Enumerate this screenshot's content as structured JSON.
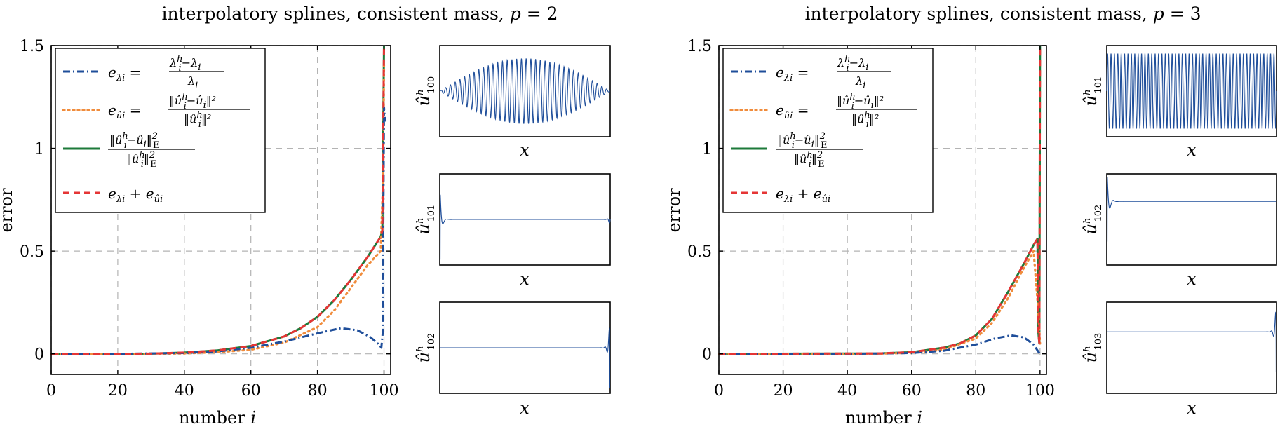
{
  "colors": {
    "blue": "#1f4e9a",
    "orange": "#f08c3c",
    "green": "#1d7a3a",
    "red": "#e53535",
    "grid": "#b3b3b3"
  },
  "chart_data": [
    {
      "type": "line",
      "title": "interpolatory splines, consistent mass, p = 2",
      "title_prefix": "interpolatory splines, consistent mass, ",
      "title_var": "p",
      "title_eq": " = 2",
      "xlabel_text": "number",
      "xlabel_var": "i",
      "ylabel": "error",
      "xlim": [
        0,
        102
      ],
      "ylim": [
        -0.1,
        1.5
      ],
      "xticks": [
        "0",
        "20",
        "40",
        "60",
        "80",
        "100"
      ],
      "yticks": [
        "0",
        "0.5",
        "1",
        "1.5"
      ],
      "grid": true,
      "legend_position": "top-left",
      "legend": [
        {
          "style": "dash-dot",
          "color": "blue",
          "lhs": "e",
          "lhs_sub": "λi",
          "rhs_num": "λih − λi",
          "rhs_den": "λi"
        },
        {
          "style": "dotted",
          "color": "orange",
          "lhs": "e",
          "lhs_sub": "ûi",
          "rhs_num": "‖ûih − ûi‖²",
          "rhs_den": "‖ûih‖²"
        },
        {
          "style": "solid",
          "color": "green",
          "frac_num": "‖ûih − ûi‖²E",
          "frac_den": "‖ûih‖²E"
        },
        {
          "style": "dashed",
          "color": "red",
          "expr": "eλi + eûi"
        }
      ],
      "series": [
        {
          "key": "e_lambda",
          "color": "blue",
          "style": "dash-dot",
          "points": [
            [
              0,
              0
            ],
            [
              20,
              0
            ],
            [
              40,
              0.004
            ],
            [
              50,
              0.012
            ],
            [
              60,
              0.03
            ],
            [
              70,
              0.06
            ],
            [
              80,
              0.1
            ],
            [
              87,
              0.125
            ],
            [
              92,
              0.115
            ],
            [
              96,
              0.08
            ],
            [
              98.5,
              0.045
            ],
            [
              99.2,
              0.03
            ],
            [
              99.6,
              0.1
            ],
            [
              100,
              1.2
            ],
            [
              100.3,
              1.13
            ]
          ]
        },
        {
          "key": "e_u",
          "color": "orange",
          "style": "dotted",
          "points": [
            [
              0,
              0
            ],
            [
              30,
              0
            ],
            [
              40,
              0.002
            ],
            [
              50,
              0.008
            ],
            [
              60,
              0.02
            ],
            [
              70,
              0.055
            ],
            [
              80,
              0.13
            ],
            [
              85,
              0.21
            ],
            [
              90,
              0.32
            ],
            [
              95,
              0.43
            ],
            [
              99,
              0.5
            ],
            [
              99.8,
              0.9
            ],
            [
              100,
              1.42
            ]
          ]
        },
        {
          "key": "energy",
          "color": "green",
          "style": "solid",
          "points": [
            [
              0,
              0
            ],
            [
              30,
              0.001
            ],
            [
              40,
              0.006
            ],
            [
              50,
              0.017
            ],
            [
              60,
              0.038
            ],
            [
              70,
              0.085
            ],
            [
              75,
              0.125
            ],
            [
              80,
              0.18
            ],
            [
              85,
              0.26
            ],
            [
              90,
              0.36
            ],
            [
              95,
              0.47
            ],
            [
              99,
              0.57
            ],
            [
              99.5,
              0.6
            ],
            [
              100,
              1.5
            ]
          ]
        },
        {
          "key": "sum",
          "color": "red",
          "style": "dashed",
          "points": [
            [
              0,
              0
            ],
            [
              30,
              0.001
            ],
            [
              40,
              0.006
            ],
            [
              50,
              0.017
            ],
            [
              60,
              0.038
            ],
            [
              70,
              0.085
            ],
            [
              75,
              0.125
            ],
            [
              80,
              0.18
            ],
            [
              85,
              0.26
            ],
            [
              90,
              0.36
            ],
            [
              95,
              0.47
            ],
            [
              99,
              0.57
            ],
            [
              99.5,
              0.6
            ],
            [
              100,
              1.5
            ]
          ]
        }
      ],
      "insets": [
        {
          "label_base": "û",
          "label_sup": "h",
          "label_sub": "100",
          "xlabel": "x",
          "shape": "sine-envelope"
        },
        {
          "label_base": "û",
          "label_sup": "h",
          "label_sub": "101",
          "xlabel": "x",
          "shape": "edge-both"
        },
        {
          "label_base": "û",
          "label_sup": "h",
          "label_sub": "102",
          "xlabel": "x",
          "shape": "edge-right"
        }
      ]
    },
    {
      "type": "line",
      "title": "interpolatory splines, consistent mass, p = 3",
      "title_prefix": "interpolatory splines, consistent mass, ",
      "title_var": "p",
      "title_eq": " = 3",
      "xlabel_text": "number",
      "xlabel_var": "i",
      "ylabel": "error",
      "xlim": [
        0,
        102
      ],
      "ylim": [
        -0.1,
        1.5
      ],
      "xticks": [
        "0",
        "20",
        "40",
        "60",
        "80",
        "100"
      ],
      "yticks": [
        "0",
        "0.5",
        "1",
        "1.5"
      ],
      "grid": true,
      "legend_position": "top-left",
      "legend": [
        {
          "style": "dash-dot",
          "color": "blue",
          "lhs": "e",
          "lhs_sub": "λi",
          "rhs_num": "λih − λi",
          "rhs_den": "λi"
        },
        {
          "style": "dotted",
          "color": "orange",
          "lhs": "e",
          "lhs_sub": "ûi",
          "rhs_num": "‖ûih − ûi‖²",
          "rhs_den": "‖ûih‖²"
        },
        {
          "style": "solid",
          "color": "green",
          "frac_num": "‖ûih − ûi‖²E",
          "frac_den": "‖ûih‖²E"
        },
        {
          "style": "dashed",
          "color": "red",
          "expr": "eλi + eûi"
        }
      ],
      "series": [
        {
          "key": "e_lambda",
          "color": "blue",
          "style": "dash-dot",
          "points": [
            [
              0,
              0
            ],
            [
              40,
              0
            ],
            [
              60,
              0.004
            ],
            [
              70,
              0.015
            ],
            [
              80,
              0.045
            ],
            [
              86,
              0.075
            ],
            [
              91,
              0.09
            ],
            [
              95,
              0.08
            ],
            [
              98,
              0.045
            ],
            [
              99.5,
              0.01
            ],
            [
              100,
              0
            ]
          ]
        },
        {
          "key": "e_u",
          "color": "orange",
          "style": "dotted",
          "points": [
            [
              0,
              0
            ],
            [
              50,
              0.001
            ],
            [
              60,
              0.005
            ],
            [
              70,
              0.02
            ],
            [
              80,
              0.075
            ],
            [
              85,
              0.15
            ],
            [
              90,
              0.27
            ],
            [
              95,
              0.42
            ],
            [
              98,
              0.5
            ],
            [
              99.5,
              0.2
            ],
            [
              100,
              0.05
            ]
          ]
        },
        {
          "key": "energy",
          "color": "green",
          "style": "solid",
          "points": [
            [
              0,
              0
            ],
            [
              50,
              0.002
            ],
            [
              60,
              0.008
            ],
            [
              70,
              0.03
            ],
            [
              75,
              0.05
            ],
            [
              80,
              0.09
            ],
            [
              85,
              0.17
            ],
            [
              90,
              0.3
            ],
            [
              95,
              0.44
            ],
            [
              98,
              0.53
            ],
            [
              99.2,
              0.56
            ],
            [
              99.5,
              0.1
            ],
            [
              99.8,
              0.05
            ],
            [
              100,
              1.5
            ]
          ]
        },
        {
          "key": "sum",
          "color": "red",
          "style": "dashed",
          "points": [
            [
              0,
              0
            ],
            [
              50,
              0.002
            ],
            [
              60,
              0.008
            ],
            [
              70,
              0.03
            ],
            [
              75,
              0.05
            ],
            [
              80,
              0.09
            ],
            [
              85,
              0.17
            ],
            [
              90,
              0.3
            ],
            [
              95,
              0.44
            ],
            [
              98,
              0.53
            ],
            [
              99.2,
              0.56
            ],
            [
              99.5,
              0.1
            ],
            [
              99.8,
              0.05
            ],
            [
              100,
              1.5
            ]
          ]
        }
      ],
      "insets": [
        {
          "label_base": "û",
          "label_sup": "h",
          "label_sub": "101",
          "xlabel": "x",
          "shape": "dense-uniform"
        },
        {
          "label_base": "û",
          "label_sup": "h",
          "label_sub": "102",
          "xlabel": "x",
          "shape": "edge-left"
        },
        {
          "label_base": "û",
          "label_sup": "h",
          "label_sub": "103",
          "xlabel": "x",
          "shape": "edge-right"
        }
      ]
    }
  ]
}
